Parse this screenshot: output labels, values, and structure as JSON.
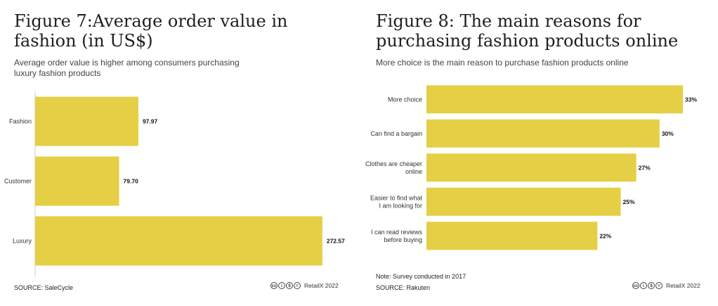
{
  "figure7": {
    "title": "Figure 7:Average order value in fashion (in US$)",
    "subtitle": "Average order value is higher among consumers purchasing luxury fashion products",
    "source": "SOURCE: SaleCycle",
    "credit": "RetailX 2022",
    "license_icons": [
      "cc-icon",
      "by-icon",
      "nc-icon",
      "nd-icon"
    ]
  },
  "figure8": {
    "title": "Figure 8: The main reasons for purchasing fashion products online",
    "subtitle": "More choice is the main reason to purchase fashion products online",
    "note": "Note: Survey conducted in 2017",
    "source": "SOURCE: Rakuten",
    "credit": "RetailX 2022",
    "license_icons": [
      "cc-icon",
      "by-icon",
      "nc-icon",
      "nd-icon"
    ]
  },
  "chart_data": [
    {
      "type": "bar",
      "orientation": "horizontal",
      "title": "Figure 7:Average order value in fashion (in US$)",
      "subtitle": "Average order value is higher among consumers purchasing luxury fashion products",
      "categories": [
        "Fashion",
        "Customer",
        "Luxury"
      ],
      "values": [
        97.97,
        79.7,
        272.57
      ],
      "value_labels": [
        "97.97",
        "79.70",
        "272.57"
      ],
      "xlim": [
        0,
        280
      ],
      "color": "#e5cf45",
      "grid": false,
      "legend": "none"
    },
    {
      "type": "bar",
      "orientation": "horizontal",
      "title": "Figure 8: The main reasons for purchasing fashion products online",
      "subtitle": "More choice is the main reason to purchase fashion products online",
      "categories": [
        "More choice",
        "Can find a bargain",
        "Clothes are cheaper online",
        "Easier to find what I am looking for",
        "I can read reviews before buying"
      ],
      "category_lines": [
        [
          "More choice"
        ],
        [
          "Can find a bargain"
        ],
        [
          "Clothes are cheaper",
          "online"
        ],
        [
          "Easier to find what",
          "I am looking for"
        ],
        [
          "I can read reviews",
          "before buying"
        ]
      ],
      "values": [
        33,
        30,
        27,
        25,
        22
      ],
      "value_labels": [
        "33%",
        "30%",
        "27%",
        "25%",
        "22%"
      ],
      "xlim": [
        0,
        33
      ],
      "color": "#e5cf45",
      "grid": false,
      "legend": "none"
    }
  ]
}
